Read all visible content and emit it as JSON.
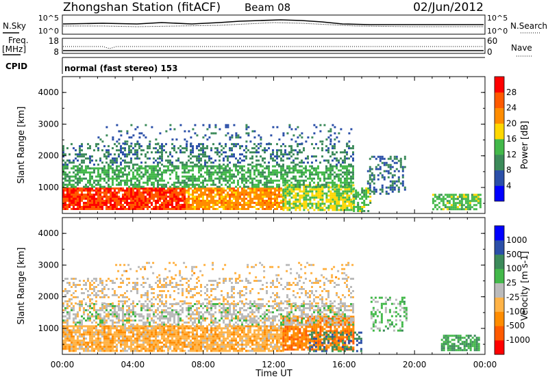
{
  "header": {
    "title": "Zhongshan Station (fitACF)",
    "beam": "Beam 08",
    "date": "02/Jun/2012"
  },
  "strip_labels": {
    "nsky": "N.Sky",
    "nsearch": "N.Search",
    "freq": "Freq.",
    "freq_unit": "[MHz]",
    "nave": "Nave",
    "cpid": "CPID",
    "cpid_value": "normal (fast stereo) 153"
  },
  "strip_ticks": {
    "noise_left": [
      "10^5",
      "10^0"
    ],
    "noise_right": [
      "10^5",
      "10^0"
    ],
    "freq_left": [
      "18",
      "8"
    ],
    "nave_right": [
      "60",
      "0"
    ]
  },
  "colors": {
    "power_scale": [
      "#0000ff",
      "#2b4fa8",
      "#3c8a5a",
      "#43b84a",
      "#ffd700",
      "#ff8c00",
      "#ff5a00",
      "#ff0000"
    ],
    "velocity_scale": [
      "#ff0000",
      "#ff5a00",
      "#ff8c00",
      "#ffb347",
      "#bbbbbb",
      "#43b84a",
      "#3c8a5a",
      "#2b4fa8",
      "#0000ff"
    ]
  },
  "chart_data": [
    {
      "type": "heatmap",
      "name": "power-panel",
      "title": "",
      "xlabel": "Time UT",
      "ylabel": "Slant Range [km]",
      "colorbar_label": "Power [dB]",
      "x_ticks": [
        "00:00",
        "04:00",
        "08:00",
        "12:00",
        "16:00",
        "20:00",
        "00:00"
      ],
      "xlim_hours": [
        0,
        24
      ],
      "y_ticks": [
        1000,
        2000,
        3000,
        4000
      ],
      "ylim": [
        180,
        4500
      ],
      "colorbar_ticks": [
        "28",
        "24",
        "20",
        "16",
        "12",
        "8",
        "4"
      ],
      "colorbar_range": [
        0,
        32
      ],
      "regions": [
        {
          "t0": 0.0,
          "t1": 7.0,
          "r0": 300,
          "r1": 1000,
          "value": 28,
          "density": 0.9
        },
        {
          "t0": 7.0,
          "t1": 12.5,
          "r0": 300,
          "r1": 1000,
          "value": 22,
          "density": 0.85
        },
        {
          "t0": 12.5,
          "t1": 16.5,
          "r0": 300,
          "r1": 1100,
          "value": 16,
          "density": 0.8
        },
        {
          "t0": 0.0,
          "t1": 16.5,
          "r0": 1000,
          "r1": 1700,
          "value": 13,
          "density": 0.6
        },
        {
          "t0": 0.0,
          "t1": 16.5,
          "r0": 1700,
          "r1": 2400,
          "value": 9,
          "density": 0.35
        },
        {
          "t0": 2.0,
          "t1": 16.5,
          "r0": 2400,
          "r1": 3000,
          "value": 7,
          "density": 0.12
        },
        {
          "t0": 16.5,
          "t1": 17.5,
          "r0": 250,
          "r1": 1000,
          "value": 14,
          "density": 0.6
        },
        {
          "t0": 17.3,
          "t1": 19.5,
          "r0": 800,
          "r1": 2000,
          "value": 8,
          "density": 0.4
        },
        {
          "t0": 21.0,
          "t1": 23.7,
          "r0": 300,
          "r1": 800,
          "value": 14,
          "density": 0.7
        }
      ]
    },
    {
      "type": "heatmap",
      "name": "velocity-panel",
      "title": "",
      "xlabel": "Time UT",
      "ylabel": "Slant Range [km]",
      "colorbar_label": "Velocity [m s-1]",
      "x_ticks": [
        "00:00",
        "04:00",
        "08:00",
        "12:00",
        "16:00",
        "20:00",
        "00:00"
      ],
      "xlim_hours": [
        0,
        24
      ],
      "y_ticks": [
        1000,
        2000,
        3000,
        4000
      ],
      "ylim": [
        180,
        4500
      ],
      "colorbar_ticks": [
        "1000",
        "500",
        "100",
        "25",
        "-25",
        "-100",
        "-500",
        "-1000"
      ],
      "colorbar_range": [
        -1200,
        1200
      ],
      "regions": [
        {
          "t0": 0.0,
          "t1": 12.5,
          "r0": 300,
          "r1": 1100,
          "value": -300,
          "density": 0.85
        },
        {
          "t0": 12.5,
          "t1": 16.5,
          "r0": 300,
          "r1": 1400,
          "value": -600,
          "density": 0.8
        },
        {
          "t0": 0.0,
          "t1": 16.5,
          "r0": 1100,
          "r1": 1800,
          "value": 0,
          "density": 0.55
        },
        {
          "t0": 0.0,
          "t1": 16.5,
          "r0": 1800,
          "r1": 2600,
          "value": -120,
          "density": 0.3
        },
        {
          "t0": 3.0,
          "t1": 16.5,
          "r0": 2600,
          "r1": 3100,
          "value": -200,
          "density": 0.1
        },
        {
          "t0": 14.0,
          "t1": 17.0,
          "r0": 300,
          "r1": 900,
          "value": 600,
          "density": 0.4
        },
        {
          "t0": 17.5,
          "t1": 19.5,
          "r0": 900,
          "r1": 2000,
          "value": 200,
          "density": 0.35
        },
        {
          "t0": 21.5,
          "t1": 23.7,
          "r0": 300,
          "r1": 800,
          "value": 400,
          "density": 0.7
        }
      ]
    }
  ]
}
